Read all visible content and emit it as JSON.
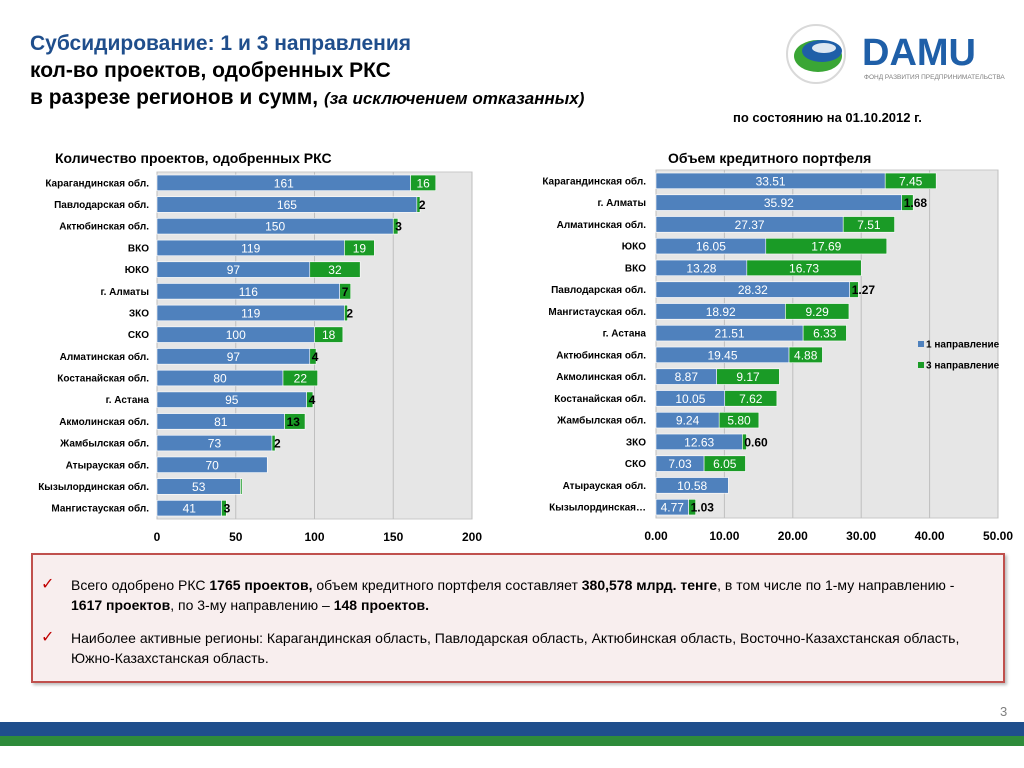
{
  "header": {
    "title_line1": "Субсидирование: 1 и 3 направления",
    "title_line2": "кол-во проектов, одобренных РКС",
    "title_line3": "в разрезе регионов и сумм,",
    "title_line3_note": "(за исключением отказанных)",
    "date": "по состоянию на 01.10.2012 г."
  },
  "logo": {
    "brand": "DAMU",
    "tagline": "ФОНД РАЗВИТИЯ ПРЕДПРИНИМАТЕЛЬСТВА",
    "colors": {
      "blue": "#1f5fa8",
      "green": "#3aa635"
    }
  },
  "colors": {
    "series1": "#4f81bd",
    "series2": "#1a9b26",
    "plot_bg": "#e6e6e6",
    "title_blue": "#1f4e8c",
    "accent_red": "#c0504d"
  },
  "chart_data": [
    {
      "type": "bar",
      "orientation": "horizontal",
      "stacked": true,
      "title": "Количество проектов, одобренных РКС",
      "categories": [
        "Карагандинская обл.",
        "Павлодарская обл.",
        "Актюбинская обл.",
        "ВКО",
        "ЮКО",
        "г. Алматы",
        "ЗКО",
        "СКО",
        "Алматинская обл.",
        "Костанайская обл.",
        "г. Астана",
        "Акмолинская обл.",
        "Жамбылская обл.",
        "Атырауская обл.",
        "Кызылординская обл.",
        "Мангистауская обл."
      ],
      "series": [
        {
          "values": [
            161,
            165,
            150,
            119,
            97,
            116,
            119,
            100,
            97,
            80,
            95,
            81,
            73,
            70,
            53,
            41
          ],
          "labels": [
            "161",
            "165",
            "150",
            "119",
            "97",
            "116",
            "119",
            "100",
            "97",
            "80",
            "95",
            "81",
            "73",
            "70",
            "53",
            "41"
          ]
        },
        {
          "values": [
            16,
            2,
            3,
            19,
            32,
            7,
            2,
            18,
            4,
            22,
            4,
            13,
            2,
            0,
            1,
            3
          ],
          "labels": [
            "16",
            "2",
            "3",
            "19",
            "32",
            "7",
            "2",
            "18",
            "4",
            "22",
            "4",
            "13",
            "2",
            "",
            "",
            "3"
          ]
        }
      ],
      "xlim": [
        0,
        200
      ],
      "xticks": [
        "0",
        "50",
        "100",
        "150",
        "200"
      ],
      "grid": true,
      "legend": "none"
    },
    {
      "type": "bar",
      "orientation": "horizontal",
      "stacked": true,
      "title": "Объем кредитного портфеля",
      "categories": [
        "Карагандинская обл.",
        "г. Алматы",
        "Алматинская обл.",
        "ЮКО",
        "ВКО",
        "Павлодарская обл.",
        "Мангистауская обл.",
        "г. Астана",
        "Актюбинская обл.",
        "Акмолинская обл.",
        "Костанайская обл.",
        "Жамбылская обл.",
        "ЗКО",
        "СКО",
        "Атырауская обл.",
        "Кызылординская…"
      ],
      "series": [
        {
          "name": "1 направление",
          "values": [
            33.51,
            35.92,
            27.37,
            16.05,
            13.28,
            28.32,
            18.92,
            21.51,
            19.45,
            8.87,
            10.05,
            9.24,
            12.63,
            7.03,
            10.58,
            4.77
          ],
          "labels": [
            "33.51",
            "35.92",
            "27.37",
            "16.05",
            "13.28",
            "28.32",
            "18.92",
            "21.51",
            "19.45",
            "8.87",
            "10.05",
            "9.24",
            "12.63",
            "7.03",
            "10.58",
            "4.77"
          ]
        },
        {
          "name": "3 направление",
          "values": [
            7.45,
            1.68,
            7.51,
            17.69,
            16.73,
            1.27,
            9.29,
            6.33,
            4.88,
            9.17,
            7.62,
            5.8,
            0.6,
            6.05,
            0,
            1.03
          ],
          "labels": [
            "7.45",
            "1.68",
            "7.51",
            "17.69",
            "16.73",
            "1.27",
            "9.29",
            "6.33",
            "4.88",
            "9.17",
            "7.62",
            "5.80",
            "0.60",
            "6.05",
            "",
            "1.03"
          ]
        }
      ],
      "xlim": [
        0,
        50
      ],
      "xticks": [
        "0.00",
        "10.00",
        "20.00",
        "30.00",
        "40.00",
        "50.00"
      ],
      "grid": true,
      "legend": "right"
    }
  ],
  "summary": {
    "b1_part1": "Всего одобрено РКС ",
    "b1_bold1": "1765 проектов,",
    "b1_part2": "  объем кредитного портфеля составляет ",
    "b1_bold2": "380,578 млрд. тенге",
    "b1_part3": ", в том числе по 1-му направлению -  ",
    "b1_bold3": "1617 проектов",
    "b1_part4": ", по 3-му направлению – ",
    "b1_bold4": "148 проектов.",
    "b2_text": "Наиболее активные регионы: Карагандинская область, Павлодарская область, Актюбинская область, Восточно-Казахстанская область, Южно-Казахстанская область."
  },
  "page_number": "3"
}
